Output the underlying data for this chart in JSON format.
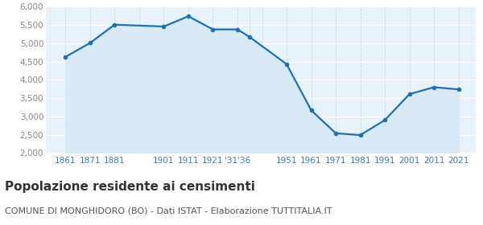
{
  "years": [
    1861,
    1871,
    1881,
    1901,
    1911,
    1921,
    1931,
    1936,
    1951,
    1961,
    1971,
    1981,
    1991,
    2001,
    2011,
    2021
  ],
  "population": [
    4630,
    5010,
    5510,
    5460,
    5740,
    5380,
    5380,
    5170,
    4430,
    3170,
    2540,
    2490,
    2900,
    3610,
    3800,
    3740
  ],
  "line_color": "#1b72b8",
  "fill_color": "#d9eaf7",
  "marker_color": "#1b72b8",
  "background_color": "#e8f2fb",
  "grid_color": "#ffffff",
  "title": "Popolazione residente ai censimenti",
  "subtitle": "COMUNE DI MONGHIDORO (BO) - Dati ISTAT - Elaborazione TUTTITALIA.IT",
  "ylim": [
    2000,
    6000
  ],
  "yticks": [
    2000,
    2500,
    3000,
    3500,
    4000,
    4500,
    5000,
    5500,
    6000
  ],
  "title_fontsize": 11,
  "subtitle_fontsize": 8,
  "tick_label_color": "#3a7bbf",
  "ytick_label_color": "#888888"
}
